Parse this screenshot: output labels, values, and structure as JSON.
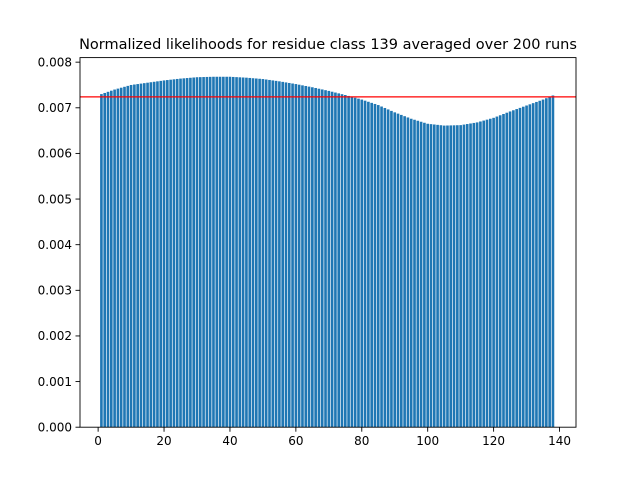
{
  "chart_data": {
    "type": "bar",
    "title": "Normalized likelihoods for residue class 139 averaged over 200 runs",
    "xlabel": "",
    "ylabel": "",
    "x": {
      "start": 1,
      "end": 138,
      "step": 1
    },
    "control_points": [
      [
        1,
        0.0073
      ],
      [
        5,
        0.0074
      ],
      [
        10,
        0.0075
      ],
      [
        15,
        0.00755
      ],
      [
        20,
        0.0076
      ],
      [
        25,
        0.00764
      ],
      [
        30,
        0.00767
      ],
      [
        35,
        0.00768
      ],
      [
        40,
        0.00768
      ],
      [
        45,
        0.00766
      ],
      [
        50,
        0.00763
      ],
      [
        55,
        0.00758
      ],
      [
        60,
        0.00752
      ],
      [
        65,
        0.00745
      ],
      [
        70,
        0.00737
      ],
      [
        75,
        0.00728
      ],
      [
        80,
        0.00718
      ],
      [
        85,
        0.00706
      ],
      [
        90,
        0.0069
      ],
      [
        95,
        0.00676
      ],
      [
        100,
        0.00665
      ],
      [
        105,
        0.00661
      ],
      [
        110,
        0.00662
      ],
      [
        115,
        0.00668
      ],
      [
        120,
        0.00678
      ],
      [
        125,
        0.00692
      ],
      [
        130,
        0.00705
      ],
      [
        135,
        0.00718
      ],
      [
        138,
        0.00727
      ]
    ],
    "reference_line": {
      "value": 0.00724,
      "color": "#ff0000"
    },
    "bar_color": "#1f77b4",
    "xlim": [
      -5.5,
      145
    ],
    "ylim": [
      0,
      0.0081
    ],
    "xticks": [
      0,
      20,
      40,
      60,
      80,
      100,
      120,
      140
    ],
    "xtick_labels": [
      "0",
      "20",
      "40",
      "60",
      "80",
      "100",
      "120",
      "140"
    ],
    "yticks": [
      0,
      0.001,
      0.002,
      0.003,
      0.004,
      0.005,
      0.006,
      0.007,
      0.008
    ],
    "ytick_labels": [
      "0.000",
      "0.001",
      "0.002",
      "0.003",
      "0.004",
      "0.005",
      "0.006",
      "0.007",
      "0.008"
    ],
    "grid": false,
    "legend": "none"
  }
}
